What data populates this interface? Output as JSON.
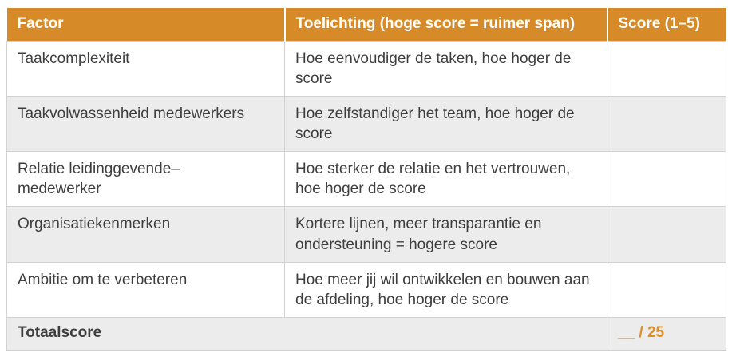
{
  "colors": {
    "header_bg": "#d78b28",
    "header_text": "#ffffff",
    "stripe_bg": "#ececec",
    "border": "#d2d2d2",
    "body_text": "#3e3e3e",
    "accent_orange": "#de8e27"
  },
  "table": {
    "headers": [
      "Factor",
      "Toelichting (hoge score = ruimer span)",
      "Score (1–5)"
    ],
    "rows": [
      {
        "factor": "Taakcomplexiteit",
        "toelichting": "Hoe eenvoudiger de taken, hoe hoger de score",
        "score": ""
      },
      {
        "factor": "Taakvolwassenheid medewerkers",
        "toelichting": "Hoe zelfstandiger het team, hoe hoger de score",
        "score": ""
      },
      {
        "factor": "Relatie leidinggevende–medewerker",
        "toelichting": "Hoe sterker de relatie en het vertrouwen, hoe hoger de score",
        "score": ""
      },
      {
        "factor": "Organisatiekenmerken",
        "toelichting": "Kortere lijnen, meer transparantie en ondersteuning = hogere score",
        "score": ""
      },
      {
        "factor": "Ambitie om te verbeteren",
        "toelichting": "Hoe meer jij wil ontwikkelen en bouwen aan de afdeling, hoe hoger de score",
        "score": ""
      }
    ],
    "footer": {
      "label": "Totaalscore",
      "score": "__ / 25"
    }
  }
}
